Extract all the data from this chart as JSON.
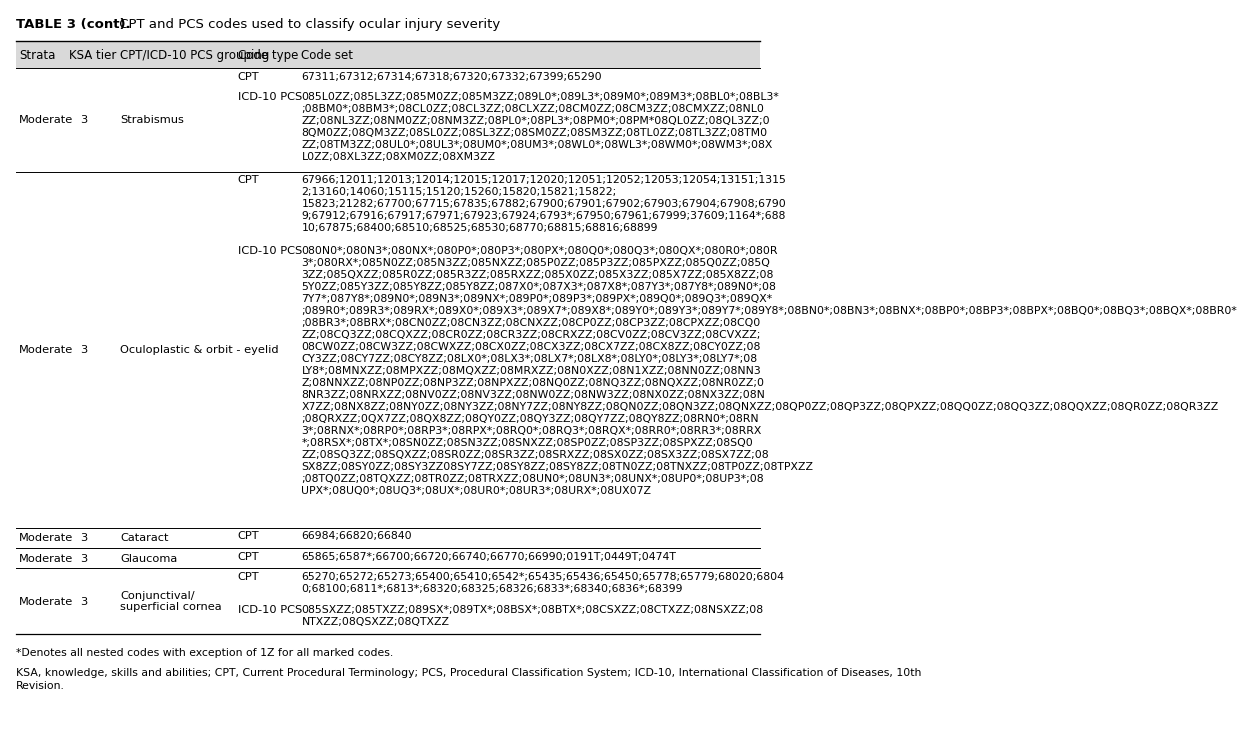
{
  "title_bold": "TABLE 3 (cont).",
  "title_normal": " CPT and PCS codes used to classify ocular injury severity",
  "header": [
    "Strata",
    "KSA tier",
    "CPT/ICD-10 PCS grouping",
    "Code type",
    "Code set"
  ],
  "header_bg": "#d9d9d9",
  "rows": [
    {
      "strata": "Moderate",
      "ksa": "3",
      "grouping": "Strabismus",
      "entries": [
        {
          "code_type": "CPT",
          "code_set": "67311;67312;67314;67318;67320;67332;67399;65290"
        },
        {
          "code_type": "ICD-10 PCS",
          "code_set": "085L0ZZ;085L3ZZ;085M0ZZ;085M3ZZ;089L0*;089L3*;089M0*;089M3*;08BL0*;08BL3*\n;08BM0*;08BM3*;08CL0ZZ;08CL3ZZ;08CLXZZ;08CM0ZZ;08CM3ZZ;08CMXZZ;08NL0\nZZ;08NL3ZZ;08NM0ZZ;08NM3ZZ;08PL0*;08PL3*;08PM0*;08PM*08QL0ZZ;08QL3ZZ;0\n8QM0ZZ;08QM3ZZ;08SL0ZZ;08SL3ZZ;08SM0ZZ;08SM3ZZ;08TL0ZZ;08TL3ZZ;08TM0\nZZ;08TM3ZZ;08UL0*;08UL3*;08UM0*;08UM3*;08WL0*;08WL3*;08WM0*;08WM3*;08X\nL0ZZ;08XL3ZZ;08XM0ZZ;08XM3ZZ"
        }
      ]
    },
    {
      "strata": "Moderate",
      "ksa": "3",
      "grouping": "Oculoplastic & orbit - eyelid",
      "entries": [
        {
          "code_type": "CPT",
          "code_set": "67966;12011;12013;12014;12015;12017;12020;12051;12052;12053;12054;13151;1315\n2;13160;14060;15115;15120;15260;15820;15821;15822;\n15823;21282;67700;67715;67835;67882;67900;67901;67902;67903;67904;67908;6790\n9;67912;67916;67917;67971;67923;67924;6793*;67950;67961;67999;37609;1164*;688\n10;67875;68400;68510;68525;68530;68770;68815;68816;68899"
        },
        {
          "code_type": "ICD-10 PCS",
          "code_set": "080N0*;080N3*;080NX*;080P0*;080P3*;080PX*;080Q0*;080Q3*;080QX*;080R0*;080R\n3*;080RX*;085N0ZZ;085N3ZZ;085NXZZ;085P0ZZ;085P3ZZ;085PXZZ;085Q0ZZ;085Q\n3ZZ;085QXZZ;085R0ZZ;085R3ZZ;085RXZZ;085X0ZZ;085X3ZZ;085X7ZZ;085X8ZZ;08\n5Y0ZZ;085Y3ZZ;085Y8ZZ;085Y8ZZ;087X0*;087X3*;087X8*;087Y3*;087Y8*;089N0*;08\n7Y7*;087Y8*;089N0*;089N3*;089NX*;089P0*;089P3*;089PX*;089Q0*;089Q3*;089QX*\n;089R0*;089R3*;089RX*;089X0*;089X3*;089X7*;089X8*;089Y0*;089Y3*;089Y7*;089Y8*;08BN0*;08BN3*;08BNX*;08BP0*;08BP3*;08BPX*;08BQ0*;08BQ3*;08BQX*;08BR0*\n;08BR3*;08BRX*;08CN0ZZ;08CN3ZZ;08CNXZZ;08CP0ZZ;08CP3ZZ;08CPXZZ;08CQ0\nZZ;08CQ3ZZ;08CQXZZ;08CR0ZZ;08CR3ZZ;08CRXZZ;08CV0ZZ;08CV3ZZ;08CVXZZ;\n08CW0ZZ;08CW3ZZ;08CWXZZ;08CX0ZZ;08CX3ZZ;08CX7ZZ;08CX8ZZ;08CY0ZZ;08\nCY3ZZ;08CY7ZZ;08CY8ZZ;08LX0*;08LX3*;08LX7*;08LX8*;08LY0*;08LY3*;08LY7*;08\nLY8*;08MNXZZ;08MPXZZ;08MQXZZ;08MRXZZ;08N0XZZ;08N1XZZ;08NN0ZZ;08NN3\nZ;08NNXZZ;08NP0ZZ;08NP3ZZ;08NPXZZ;08NQ0ZZ;08NQ3ZZ;08NQXZZ;08NR0ZZ;0\n8NR3ZZ;08NRXZZ;08NV0ZZ;08NV3ZZ;08NW0ZZ;08NW3ZZ;08NX0ZZ;08NX3ZZ;08N\nX7ZZ;08NX8ZZ;08NY0ZZ;08NY3ZZ;08NY7ZZ;08NY8ZZ;08QN0ZZ;08QN3ZZ;08QNXZZ;08QP0ZZ;08QP3ZZ;08QPXZZ;08QQ0ZZ;08QQ3ZZ;08QQXZZ;08QR0ZZ;08QR3ZZ\n;08QRXZZ;0QX7ZZ;08QX8ZZ;08QY0ZZ;08QY3ZZ;08QY7ZZ;08QY8ZZ;08RN0*;08RN\n3*;08RNX*;08RP0*;08RP3*;08RPX*;08RQ0*;08RQ3*;08RQX*;08RR0*;08RR3*;08RRX\n*;08RSX*;08TX*;08SN0ZZ;08SN3ZZ;08SNXZZ;08SP0ZZ;08SP3ZZ;08SPXZZ;08SQ0\nZZ;08SQ3ZZ;08SQXZZ;08SR0ZZ;08SR3ZZ;08SRXZZ;08SX0ZZ;08SX3ZZ;08SX7ZZ;08\nSX8ZZ;08SY0ZZ;08SY3ZZ08SY7ZZ;08SY8ZZ;08SY8ZZ;08TN0ZZ;08TNXZZ;08TP0ZZ;08TPXZZ\n;08TQ0ZZ;08TQXZZ;08TR0ZZ;08TRXZZ;08UN0*;08UN3*;08UNX*;08UP0*;08UP3*;08\nUPX*;08UQ0*;08UQ3*;08UX*;08UR0*;08UR3*;08URX*;08UX07Z"
        }
      ]
    },
    {
      "strata": "Moderate",
      "ksa": "3",
      "grouping": "Cataract",
      "entries": [
        {
          "code_type": "CPT",
          "code_set": "66984;66820;66840"
        }
      ]
    },
    {
      "strata": "Moderate",
      "ksa": "3",
      "grouping": "Glaucoma",
      "entries": [
        {
          "code_type": "CPT",
          "code_set": "65865;6587*;66700;66720;66740;66770;66990;0191T;0449T;0474T"
        }
      ]
    },
    {
      "strata": "Moderate",
      "ksa": "3",
      "grouping": "Conjunctival/\nsuperficial cornea",
      "entries": [
        {
          "code_type": "CPT",
          "code_set": "65270;65272;65273;65400;65410;6542*;65435;65436;65450;65778;65779;68020;6804\n0;68100;6811*;6813*;68320;68325;68326;6833*;68340;6836*;68399"
        },
        {
          "code_type": "ICD-10 PCS",
          "code_set": "085SXZZ;085TXZZ;089SX*;089TX*;08BSX*;08BTX*;08CSXZZ;08CTXZZ;08NSXZZ;08\nNTXZZ;08QSXZZ;08QTXZZ"
        }
      ]
    }
  ],
  "footnote1": "*Denotes all nested codes with exception of 1Z for all marked codes.",
  "footnote2": "KSA, knowledge, skills and abilities; CPT, Current Procedural Terminology; PCS, Procedural Classification System; ICD-10, International Classification of Diseases, 10th\nRevision."
}
